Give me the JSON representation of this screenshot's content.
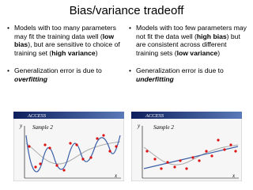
{
  "title": "Bias/variance tradeoff",
  "columns": [
    {
      "bullets": [
        {
          "runs": [
            {
              "text": "Models with too many parameters may fit the training data well ("
            },
            {
              "text": "low bias",
              "bold": true
            },
            {
              "text": "), but are sensitive to choice of training set ("
            },
            {
              "text": "high variance",
              "bold": true
            },
            {
              "text": ")"
            }
          ]
        },
        {
          "runs": [
            {
              "text": "Generalization error is due to "
            },
            {
              "text": "overfitting",
              "bold": true,
              "italic": true
            }
          ]
        }
      ],
      "figure": {
        "header": "ACCESS",
        "y_label": "y",
        "sample_label": "Sample 2",
        "x_label": "x"
      }
    },
    {
      "bullets": [
        {
          "runs": [
            {
              "text": "Models with too few parameters may not fit the data well ("
            },
            {
              "text": "high bias",
              "bold": true
            },
            {
              "text": ") but are consistent across different training sets ("
            },
            {
              "text": "low variance",
              "bold": true
            },
            {
              "text": ")"
            }
          ]
        },
        {
          "runs": [
            {
              "text": "Generalization error is due to "
            },
            {
              "text": "underfitting",
              "bold": true,
              "italic": true
            }
          ]
        }
      ],
      "figure": {
        "header": "ACCESS",
        "y_label": "y",
        "sample_label": "Sample 2",
        "x_label": "x"
      }
    }
  ]
}
